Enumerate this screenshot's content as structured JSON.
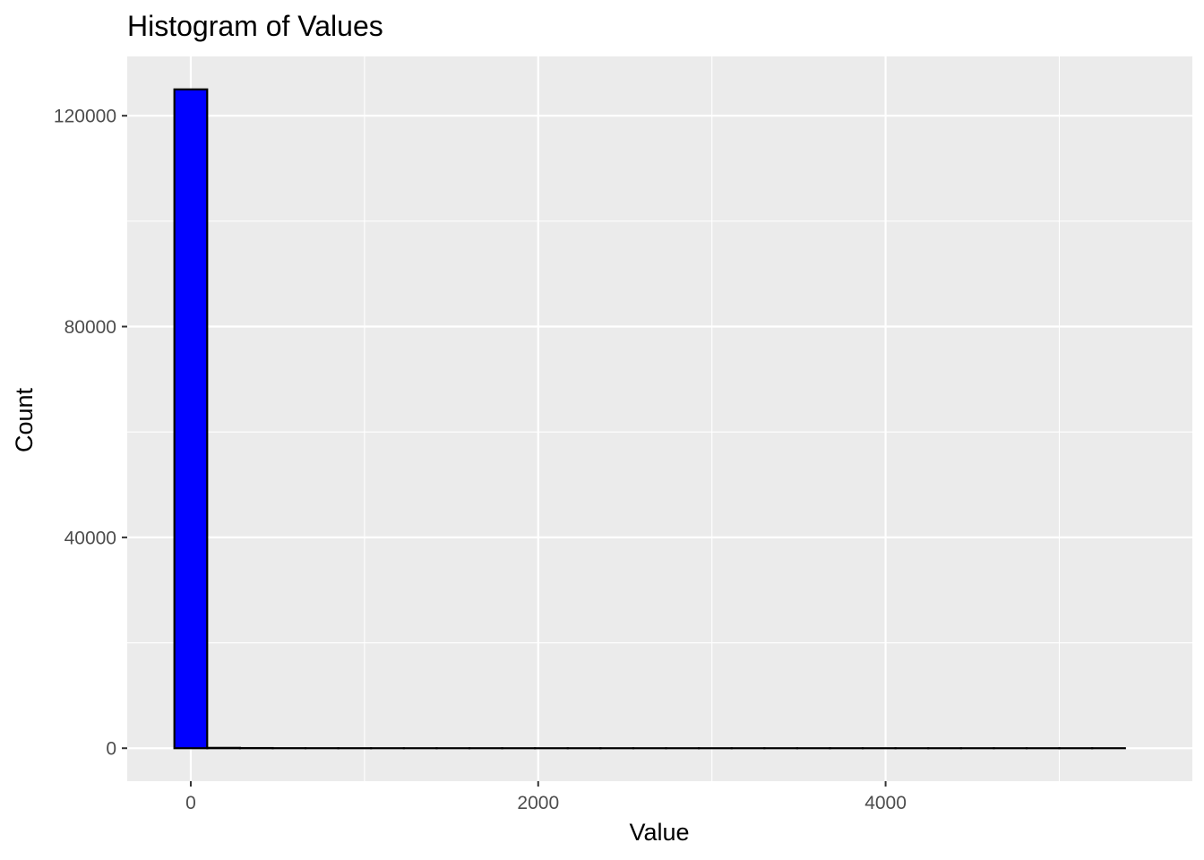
{
  "chart_data": {
    "type": "histogram",
    "title": "Histogram of Values",
    "xlabel": "Value",
    "ylabel": "Count",
    "xlim": [
      -366,
      5766
    ],
    "ylim": [
      -6250,
      131250
    ],
    "x_ticks": [
      0,
      2000,
      4000
    ],
    "x_tick_labels": [
      "0",
      "2000",
      "4000"
    ],
    "x_minor_ticks": [
      1000,
      3000,
      5000
    ],
    "y_ticks": [
      0,
      40000,
      80000,
      120000
    ],
    "y_tick_labels": [
      "0",
      "40000",
      "80000",
      "120000"
    ],
    "y_minor_ticks": [
      20000,
      60000,
      100000
    ],
    "bin_width": 188.7,
    "bin_start": -94.3,
    "counts": [
      125000,
      70,
      30,
      10,
      5,
      3,
      2,
      1,
      1,
      1,
      0,
      0,
      0,
      0,
      0,
      0,
      0,
      0,
      0,
      0,
      0,
      0,
      0,
      0,
      0,
      0,
      0,
      0,
      1
    ],
    "grid": true,
    "fill_color": "#0000ff",
    "edge_color": "#000000",
    "panel_background": "#ebebeb",
    "gridline_color": "#ffffff"
  }
}
